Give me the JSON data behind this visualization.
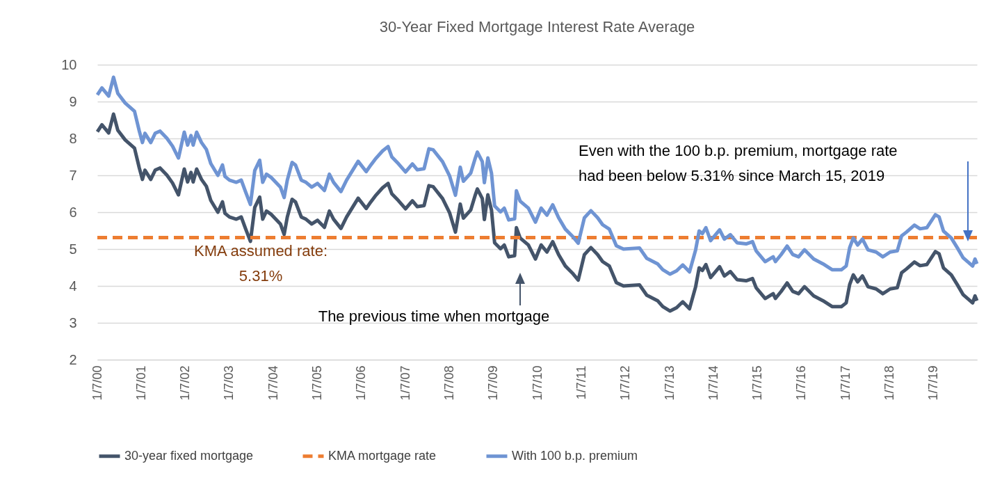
{
  "chart_data": {
    "type": "line",
    "title": "30-Year Fixed Mortgage Interest Rate Average",
    "xlim": [
      "2000-01-07",
      "2019-12-31"
    ],
    "xticks": [
      {
        "value": "2000-01-07",
        "label": "1/7/00"
      },
      {
        "value": "2001-01-07",
        "label": "1/7/01"
      },
      {
        "value": "2002-01-07",
        "label": "1/7/02"
      },
      {
        "value": "2003-01-07",
        "label": "1/7/03"
      },
      {
        "value": "2004-01-07",
        "label": "1/7/04"
      },
      {
        "value": "2005-01-07",
        "label": "1/7/05"
      },
      {
        "value": "2006-01-07",
        "label": "1/7/06"
      },
      {
        "value": "2007-01-07",
        "label": "1/7/07"
      },
      {
        "value": "2008-01-07",
        "label": "1/7/08"
      },
      {
        "value": "2009-01-07",
        "label": "1/7/09"
      },
      {
        "value": "2010-01-07",
        "label": "1/7/10"
      },
      {
        "value": "2011-01-07",
        "label": "1/7/11"
      },
      {
        "value": "2012-01-07",
        "label": "1/7/12"
      },
      {
        "value": "2013-01-07",
        "label": "1/7/13"
      },
      {
        "value": "2014-01-07",
        "label": "1/7/14"
      },
      {
        "value": "2015-01-07",
        "label": "1/7/15"
      },
      {
        "value": "2016-01-07",
        "label": "1/7/16"
      },
      {
        "value": "2017-01-07",
        "label": "1/7/17"
      },
      {
        "value": "2018-01-07",
        "label": "1/7/18"
      },
      {
        "value": "2019-01-07",
        "label": "1/7/19"
      }
    ],
    "ylim": [
      2,
      10
    ],
    "yticks": [
      2,
      3,
      4,
      5,
      6,
      7,
      8,
      9,
      10
    ],
    "grid": "y",
    "legend": "bottom",
    "series": [
      {
        "name": "30-year fixed mortgage",
        "color": "#44546a",
        "line_style": "solid",
        "x": [
          "2000-01-07",
          "2000-02-14",
          "2000-04-10",
          "2000-05-20",
          "2000-06-25",
          "2000-08-25",
          "2000-11-10",
          "2000-12-20",
          "2001-01-15",
          "2001-02-05",
          "2001-03-25",
          "2001-05-01",
          "2001-06-10",
          "2001-08-05",
          "2001-09-22",
          "2001-11-10",
          "2001-12-28",
          "2002-01-25",
          "2002-02-22",
          "2002-03-12",
          "2002-04-10",
          "2002-05-20",
          "2002-06-30",
          "2002-08-05",
          "2002-10-03",
          "2002-11-10",
          "2002-12-01",
          "2003-01-07",
          "2003-03-05",
          "2003-04-15",
          "2003-05-20",
          "2003-06-30",
          "2003-08-05",
          "2003-09-15",
          "2003-10-10",
          "2003-11-10",
          "2003-12-20",
          "2004-03-05",
          "2004-04-05",
          "2004-05-01",
          "2004-06-10",
          "2004-07-08",
          "2004-08-25",
          "2004-10-03",
          "2004-11-20",
          "2005-01-07",
          "2005-03-05",
          "2005-04-15",
          "2005-05-20",
          "2005-07-20",
          "2005-09-05",
          "2005-12-10",
          "2006-02-15",
          "2006-03-25",
          "2006-05-01",
          "2006-06-30",
          "2006-08-15",
          "2006-09-15",
          "2006-11-10",
          "2007-01-07",
          "2007-03-05",
          "2007-04-15",
          "2007-06-10",
          "2007-07-20",
          "2007-08-25",
          "2007-11-10",
          "2008-01-07",
          "2008-02-25",
          "2008-04-05",
          "2008-05-01",
          "2008-07-01",
          "2008-08-05",
          "2008-08-25",
          "2008-10-05",
          "2008-10-22",
          "2008-11-20",
          "2008-12-20",
          "2009-01-15",
          "2009-03-05",
          "2009-04-05",
          "2009-05-12",
          "2009-06-30",
          "2009-07-15",
          "2009-08-15",
          "2009-10-22",
          "2009-12-20",
          "2010-02-05",
          "2010-03-25",
          "2010-05-12",
          "2010-06-30",
          "2010-08-25",
          "2010-10-22",
          "2010-12-10",
          "2011-01-30",
          "2011-03-25",
          "2011-05-20",
          "2011-06-30",
          "2011-08-25",
          "2011-10-22",
          "2011-12-20",
          "2012-05-01",
          "2012-06-30",
          "2012-09-28",
          "2012-11-10",
          "2013-01-10",
          "2013-03-05",
          "2013-04-25",
          "2013-06-20",
          "2013-08-10",
          "2013-09-08",
          "2013-10-05",
          "2013-11-03",
          "2013-12-12",
          "2014-02-25",
          "2014-04-05",
          "2014-05-25",
          "2014-07-20",
          "2014-10-03",
          "2014-11-25",
          "2014-12-25",
          "2015-03-10",
          "2015-05-15",
          "2015-06-03",
          "2015-07-20",
          "2015-09-08",
          "2015-10-25",
          "2015-12-12",
          "2016-01-30",
          "2016-04-15",
          "2016-07-01",
          "2016-09-15",
          "2016-12-01",
          "2017-01-10",
          "2017-02-08",
          "2017-03-10",
          "2017-04-15",
          "2017-05-25",
          "2017-07-10",
          "2017-09-15",
          "2017-11-10",
          "2018-01-10",
          "2018-03-10",
          "2018-04-15",
          "2018-05-25",
          "2018-07-30",
          "2018-09-15",
          "2018-11-10",
          "2019-01-20",
          "2019-02-20",
          "2019-03-28",
          "2019-06-01",
          "2019-07-20",
          "2019-09-08",
          "2019-11-25",
          "2019-12-15",
          "2019-12-31"
        ],
        "values": [
          8.18,
          8.37,
          8.15,
          8.66,
          8.22,
          7.96,
          7.74,
          7.2,
          6.89,
          7.14,
          6.89,
          7.14,
          7.2,
          7.01,
          6.79,
          6.47,
          7.17,
          6.82,
          7.08,
          6.82,
          7.17,
          6.89,
          6.7,
          6.32,
          6.0,
          6.28,
          5.97,
          5.87,
          5.81,
          5.87,
          5.56,
          5.21,
          6.13,
          6.41,
          5.81,
          6.03,
          5.94,
          5.68,
          5.4,
          5.87,
          6.35,
          6.28,
          5.87,
          5.81,
          5.68,
          5.78,
          5.59,
          6.03,
          5.81,
          5.56,
          5.87,
          6.38,
          6.1,
          6.28,
          6.44,
          6.66,
          6.78,
          6.5,
          6.31,
          6.09,
          6.31,
          6.15,
          6.18,
          6.72,
          6.69,
          6.37,
          5.99,
          5.46,
          6.22,
          5.84,
          6.06,
          6.44,
          6.63,
          6.37,
          5.8,
          6.47,
          6.06,
          5.17,
          5.01,
          5.11,
          4.79,
          4.82,
          5.58,
          5.3,
          5.11,
          4.73,
          5.11,
          4.92,
          5.2,
          4.85,
          4.54,
          4.35,
          4.16,
          4.85,
          5.04,
          4.85,
          4.66,
          4.54,
          4.09,
          4.0,
          4.03,
          3.75,
          3.6,
          3.44,
          3.32,
          3.41,
          3.57,
          3.38,
          3.98,
          4.49,
          4.42,
          4.58,
          4.23,
          4.52,
          4.27,
          4.39,
          4.17,
          4.14,
          4.2,
          3.95,
          3.66,
          3.79,
          3.66,
          3.85,
          4.08,
          3.85,
          3.79,
          3.98,
          3.73,
          3.6,
          3.44,
          3.44,
          3.54,
          4.04,
          4.3,
          4.11,
          4.27,
          3.98,
          3.92,
          3.79,
          3.92,
          3.95,
          4.36,
          4.46,
          4.65,
          4.55,
          4.58,
          4.93,
          4.87,
          4.49,
          4.3,
          4.04,
          3.76,
          3.54,
          3.73,
          3.6
        ]
      },
      {
        "name": "KMA mortgage rate",
        "color": "#ed7d31",
        "line_style": "dashed",
        "x": [
          "2000-01-07",
          "2019-12-31"
        ],
        "values": [
          5.31,
          5.31
        ]
      },
      {
        "name": "With 100 b.p. premium",
        "color": "#6f94d3",
        "line_style": "solid",
        "x": [
          "2000-01-07",
          "2000-02-14",
          "2000-04-10",
          "2000-05-20",
          "2000-06-25",
          "2000-08-25",
          "2000-11-10",
          "2000-12-20",
          "2001-01-15",
          "2001-02-05",
          "2001-03-25",
          "2001-05-01",
          "2001-06-10",
          "2001-08-05",
          "2001-09-22",
          "2001-11-10",
          "2001-12-28",
          "2002-01-25",
          "2002-02-22",
          "2002-03-12",
          "2002-04-10",
          "2002-05-20",
          "2002-06-30",
          "2002-08-05",
          "2002-10-03",
          "2002-11-10",
          "2002-12-01",
          "2003-01-07",
          "2003-03-05",
          "2003-04-15",
          "2003-05-20",
          "2003-06-30",
          "2003-08-05",
          "2003-09-15",
          "2003-10-10",
          "2003-11-10",
          "2003-12-20",
          "2004-03-05",
          "2004-04-05",
          "2004-05-01",
          "2004-06-10",
          "2004-07-08",
          "2004-08-25",
          "2004-10-03",
          "2004-11-20",
          "2005-01-07",
          "2005-03-05",
          "2005-04-15",
          "2005-05-20",
          "2005-07-20",
          "2005-09-05",
          "2005-12-10",
          "2006-02-15",
          "2006-03-25",
          "2006-05-01",
          "2006-06-30",
          "2006-08-15",
          "2006-09-15",
          "2006-11-10",
          "2007-01-07",
          "2007-03-05",
          "2007-04-15",
          "2007-06-10",
          "2007-07-20",
          "2007-08-25",
          "2007-11-10",
          "2008-01-07",
          "2008-02-25",
          "2008-04-05",
          "2008-05-01",
          "2008-07-01",
          "2008-08-05",
          "2008-08-25",
          "2008-10-05",
          "2008-10-22",
          "2008-11-20",
          "2008-12-20",
          "2009-01-15",
          "2009-03-05",
          "2009-04-05",
          "2009-05-12",
          "2009-06-30",
          "2009-07-15",
          "2009-08-15",
          "2009-10-22",
          "2009-12-20",
          "2010-02-05",
          "2010-03-25",
          "2010-05-12",
          "2010-06-30",
          "2010-08-25",
          "2010-10-22",
          "2010-12-10",
          "2011-01-30",
          "2011-03-25",
          "2011-05-20",
          "2011-06-30",
          "2011-08-25",
          "2011-10-22",
          "2011-12-20",
          "2012-05-01",
          "2012-06-30",
          "2012-09-28",
          "2012-11-10",
          "2013-01-10",
          "2013-03-05",
          "2013-04-25",
          "2013-06-20",
          "2013-08-10",
          "2013-09-08",
          "2013-10-05",
          "2013-11-03",
          "2013-12-12",
          "2014-02-25",
          "2014-04-05",
          "2014-05-25",
          "2014-07-20",
          "2014-10-03",
          "2014-11-25",
          "2014-12-25",
          "2015-03-10",
          "2015-05-15",
          "2015-06-03",
          "2015-07-20",
          "2015-09-08",
          "2015-10-25",
          "2015-12-12",
          "2016-01-30",
          "2016-04-15",
          "2016-07-01",
          "2016-09-15",
          "2016-12-01",
          "2017-01-10",
          "2017-02-08",
          "2017-03-10",
          "2017-04-15",
          "2017-05-25",
          "2017-07-10",
          "2017-09-15",
          "2017-11-10",
          "2018-01-10",
          "2018-03-10",
          "2018-04-15",
          "2018-05-25",
          "2018-07-30",
          "2018-09-15",
          "2018-11-10",
          "2019-01-20",
          "2019-02-20",
          "2019-03-28",
          "2019-06-01",
          "2019-07-20",
          "2019-09-08",
          "2019-11-25",
          "2019-12-15",
          "2019-12-31"
        ],
        "values": [
          9.18,
          9.37,
          9.15,
          9.66,
          9.22,
          8.96,
          8.74,
          8.2,
          7.89,
          8.14,
          7.89,
          8.14,
          8.2,
          8.01,
          7.79,
          7.47,
          8.17,
          7.82,
          8.08,
          7.82,
          8.17,
          7.89,
          7.7,
          7.32,
          7.0,
          7.28,
          6.97,
          6.87,
          6.81,
          6.87,
          6.56,
          6.21,
          7.13,
          7.41,
          6.81,
          7.03,
          6.94,
          6.68,
          6.4,
          6.87,
          7.35,
          7.28,
          6.87,
          6.81,
          6.68,
          6.78,
          6.59,
          7.03,
          6.81,
          6.56,
          6.87,
          7.38,
          7.1,
          7.28,
          7.44,
          7.66,
          7.78,
          7.5,
          7.31,
          7.09,
          7.31,
          7.15,
          7.18,
          7.72,
          7.69,
          7.37,
          6.99,
          6.46,
          7.22,
          6.84,
          7.06,
          7.44,
          7.63,
          7.37,
          6.8,
          7.47,
          7.06,
          6.17,
          6.01,
          6.11,
          5.79,
          5.82,
          6.58,
          6.3,
          6.11,
          5.73,
          6.11,
          5.92,
          6.2,
          5.85,
          5.54,
          5.35,
          5.16,
          5.85,
          6.04,
          5.85,
          5.66,
          5.54,
          5.09,
          5.0,
          5.03,
          4.75,
          4.6,
          4.44,
          4.32,
          4.41,
          4.57,
          4.38,
          4.98,
          5.49,
          5.42,
          5.58,
          5.23,
          5.52,
          5.27,
          5.39,
          5.17,
          5.14,
          5.2,
          4.95,
          4.66,
          4.79,
          4.66,
          4.85,
          5.08,
          4.85,
          4.79,
          4.98,
          4.73,
          4.6,
          4.44,
          4.44,
          4.54,
          5.04,
          5.3,
          5.11,
          5.27,
          4.98,
          4.92,
          4.79,
          4.92,
          4.95,
          5.36,
          5.46,
          5.65,
          5.55,
          5.58,
          5.93,
          5.87,
          5.49,
          5.3,
          5.04,
          4.76,
          4.54,
          4.73,
          4.6
        ]
      }
    ],
    "annotations": [
      "KMA assumed rate:\n5.31%",
      "The previous time when mortgage",
      "Even with the 100 b.p. premium, mortgage rate\nhad been below 5.31% since March 15, 2019"
    ]
  }
}
